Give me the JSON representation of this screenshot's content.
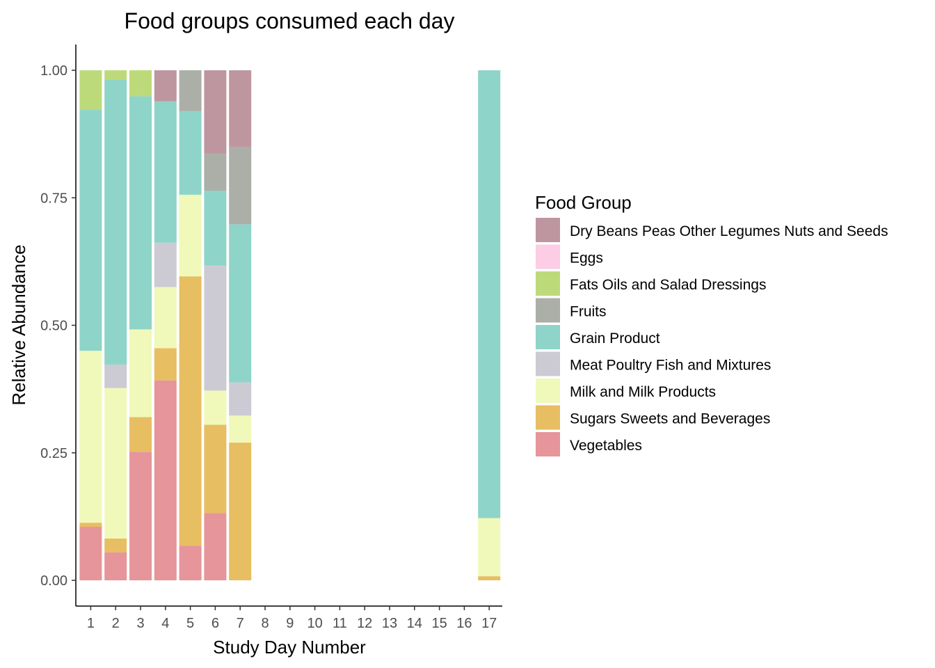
{
  "chart_data": {
    "type": "bar",
    "stacked": true,
    "title": "Food groups consumed each day",
    "xlabel": "Study Day Number",
    "ylabel": "Relative Abundance",
    "ylim": [
      0,
      1
    ],
    "yticks": [
      "0.00",
      "0.25",
      "0.50",
      "0.75",
      "1.00"
    ],
    "categories": [
      "1",
      "2",
      "3",
      "4",
      "5",
      "6",
      "7",
      "8",
      "9",
      "10",
      "11",
      "12",
      "13",
      "14",
      "15",
      "16",
      "17"
    ],
    "legend": {
      "title": "Food Group",
      "position": "right"
    },
    "series": [
      {
        "name": "Vegetables",
        "color": "#E6959A",
        "values": [
          0.105,
          0.055,
          0.252,
          0.392,
          0.068,
          0.132,
          0,
          0,
          0,
          0,
          0,
          0,
          0,
          0,
          0,
          0,
          0
        ]
      },
      {
        "name": "Sugars Sweets and Beverages",
        "color": "#E8BE62",
        "values": [
          0.008,
          0.027,
          0.068,
          0.063,
          0.528,
          0.173,
          0.27,
          0,
          0,
          0,
          0,
          0,
          0,
          0,
          0,
          0,
          0.008
        ]
      },
      {
        "name": "Milk and Milk Products",
        "color": "#F0F9BA",
        "values": [
          0.337,
          0.295,
          0.172,
          0.12,
          0.16,
          0.067,
          0.053,
          0,
          0,
          0,
          0,
          0,
          0,
          0,
          0,
          0,
          0.114
        ]
      },
      {
        "name": "Meat Poultry Fish and Mixtures",
        "color": "#CCCBD3",
        "values": [
          0,
          0.046,
          0,
          0.087,
          0,
          0.245,
          0.065,
          0,
          0,
          0,
          0,
          0,
          0,
          0,
          0,
          0,
          0
        ]
      },
      {
        "name": "Grain Product",
        "color": "#8ED4C8",
        "values": [
          0.473,
          0.559,
          0.457,
          0.277,
          0.164,
          0.147,
          0.31,
          0,
          0,
          0,
          0,
          0,
          0,
          0,
          0,
          0,
          0.878
        ]
      },
      {
        "name": "Fruits",
        "color": "#ACAFA7",
        "values": [
          0,
          0,
          0,
          0,
          0.08,
          0.073,
          0.152,
          0,
          0,
          0,
          0,
          0,
          0,
          0,
          0,
          0,
          0
        ]
      },
      {
        "name": "Fats Oils and Salad Dressings",
        "color": "#BDDA7A",
        "values": [
          0.077,
          0.018,
          0.051,
          0,
          0,
          0,
          0,
          0,
          0,
          0,
          0,
          0,
          0,
          0,
          0,
          0,
          0
        ]
      },
      {
        "name": "Eggs",
        "color": "#FDCCE5",
        "values": [
          0,
          0,
          0,
          0,
          0,
          0,
          0,
          0,
          0,
          0,
          0,
          0,
          0,
          0,
          0,
          0,
          0
        ]
      },
      {
        "name": "Dry Beans Peas Other Legumes Nuts and Seeds",
        "color": "#BE96A0",
        "values": [
          0,
          0,
          0,
          0.061,
          0,
          0.163,
          0.15,
          0,
          0,
          0,
          0,
          0,
          0,
          0,
          0,
          0,
          0
        ]
      }
    ],
    "legend_order": [
      "Dry Beans Peas Other Legumes Nuts and Seeds",
      "Eggs",
      "Fats Oils and Salad Dressings",
      "Fruits",
      "Grain Product",
      "Meat Poultry Fish and Mixtures",
      "Milk and Milk Products",
      "Sugars Sweets and Beverages",
      "Vegetables"
    ]
  }
}
